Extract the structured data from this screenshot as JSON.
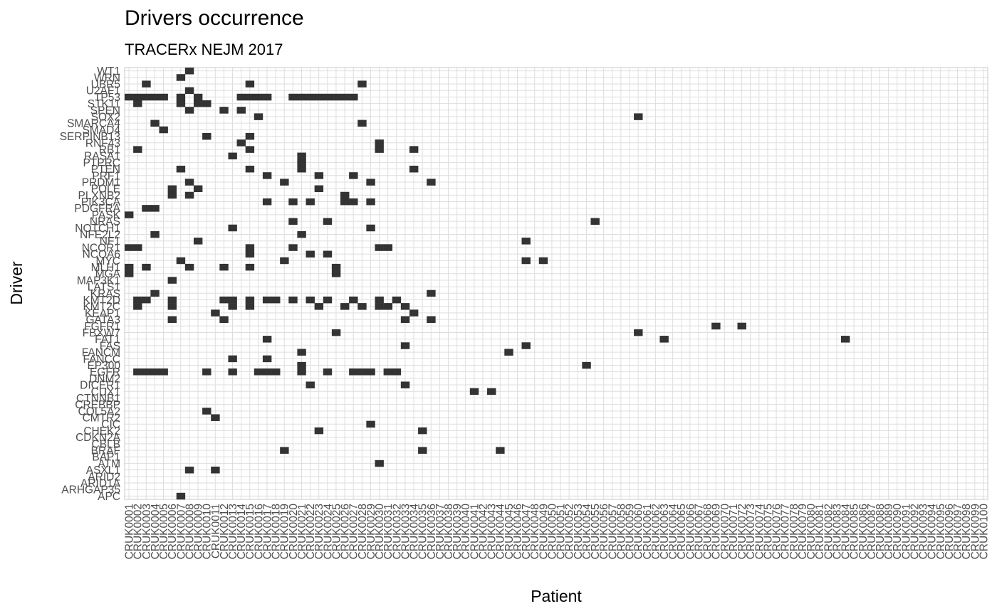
{
  "chart_data": {
    "type": "heatmap",
    "title": "Drivers occurrence",
    "subtitle": "TRACERx NEJM 2017",
    "xlabel": "Patient",
    "ylabel": "Driver",
    "grid": true,
    "legend": "none",
    "colors": {
      "cell": "#333333",
      "grid": "#dedede",
      "panel_border": "#c8c8c8",
      "tick_text": "#4d4d4d"
    },
    "x_categories": [
      "CRUK0001",
      "CRUK0002",
      "CRUK0003",
      "CRUK0004",
      "CRUK0005",
      "CRUK0006",
      "CRUK0007",
      "CRUK0008",
      "CRUK0009",
      "CRUK0010",
      "CRUK0011",
      "CRUK0012",
      "CRUK0013",
      "CRUK0014",
      "CRUK0015",
      "CRUK0016",
      "CRUK0017",
      "CRUK0018",
      "CRUK0019",
      "CRUK0020",
      "CRUK0021",
      "CRUK0022",
      "CRUK0023",
      "CRUK0024",
      "CRUK0025",
      "CRUK0026",
      "CRUK0027",
      "CRUK0028",
      "CRUK0029",
      "CRUK0030",
      "CRUK0031",
      "CRUK0032",
      "CRUK0033",
      "CRUK0034",
      "CRUK0035",
      "CRUK0036",
      "CRUK0037",
      "CRUK0038",
      "CRUK0039",
      "CRUK0040",
      "CRUK0041",
      "CRUK0042",
      "CRUK0043",
      "CRUK0044",
      "CRUK0045",
      "CRUK0046",
      "CRUK0047",
      "CRUK0048",
      "CRUK0049",
      "CRUK0050",
      "CRUK0051",
      "CRUK0052",
      "CRUK0053",
      "CRUK0054",
      "CRUK0055",
      "CRUK0056",
      "CRUK0057",
      "CRUK0058",
      "CRUK0059",
      "CRUK0060",
      "CRUK0061",
      "CRUK0062",
      "CRUK0063",
      "CRUK0064",
      "CRUK0065",
      "CRUK0066",
      "CRUK0067",
      "CRUK0068",
      "CRUK0069",
      "CRUK0070",
      "CRUK0071",
      "CRUK0072",
      "CRUK0073",
      "CRUK0074",
      "CRUK0075",
      "CRUK0076",
      "CRUK0077",
      "CRUK0078",
      "CRUK0079",
      "CRUK0080",
      "CRUK0081",
      "CRUK0082",
      "CRUK0083",
      "CRUK0084",
      "CRUK0085",
      "CRUK0086",
      "CRUK0087",
      "CRUK0088",
      "CRUK0089",
      "CRUK0090",
      "CRUK0091",
      "CRUK0092",
      "CRUK0093",
      "CRUK0094",
      "CRUK0095",
      "CRUK0096",
      "CRUK0097",
      "CRUK0098",
      "CRUK0099",
      "CRUK0100"
    ],
    "y_categories": [
      "APC",
      "ARHGAP35",
      "ARID1A",
      "ARID2",
      "ASXL1",
      "ATM",
      "BAP1",
      "BRAF",
      "CBLB",
      "CDKN2A",
      "CHEK2",
      "CIC",
      "CMTR2",
      "COL5A2",
      "CREBBP",
      "CTNNB1",
      "CUX1",
      "DICER1",
      "DNM2",
      "EGFR",
      "EP300",
      "FANCC",
      "FANCM",
      "FAS",
      "FAT1",
      "FBXW7",
      "FGFR1",
      "GATA3",
      "KEAP1",
      "KMT2C",
      "KMT2D",
      "KRAS",
      "LATS1",
      "MAP3K1",
      "MGA",
      "MLH1",
      "MYC",
      "NCOA6",
      "NCOR1",
      "NF1",
      "NFE2L2",
      "NOTCH1",
      "NRAS",
      "PASK",
      "PDGFRA",
      "PIK3CA",
      "PLXNB2",
      "POLE",
      "PRDM1",
      "PRF1",
      "PTEN",
      "PTPRC",
      "RASA1",
      "RB1",
      "RNF43",
      "SERPINB13",
      "SMAD4",
      "SMARCA4",
      "SOX2",
      "SPEN",
      "STK11",
      "TP53",
      "U2AF1",
      "UBR5",
      "WRN",
      "WT1"
    ],
    "cells": [
      [
        0,
        6
      ],
      [
        4,
        7
      ],
      [
        4,
        10
      ],
      [
        5,
        29
      ],
      [
        7,
        18
      ],
      [
        7,
        34
      ],
      [
        7,
        43
      ],
      [
        10,
        22
      ],
      [
        10,
        34
      ],
      [
        11,
        28
      ],
      [
        12,
        10
      ],
      [
        13,
        9
      ],
      [
        16,
        40
      ],
      [
        16,
        42
      ],
      [
        17,
        21
      ],
      [
        17,
        32
      ],
      [
        19,
        1
      ],
      [
        19,
        2
      ],
      [
        19,
        3
      ],
      [
        19,
        4
      ],
      [
        19,
        9
      ],
      [
        19,
        12
      ],
      [
        19,
        15
      ],
      [
        19,
        16
      ],
      [
        19,
        17
      ],
      [
        19,
        20
      ],
      [
        19,
        23
      ],
      [
        19,
        26
      ],
      [
        19,
        27
      ],
      [
        19,
        28
      ],
      [
        19,
        30
      ],
      [
        19,
        31
      ],
      [
        20,
        20
      ],
      [
        20,
        53
      ],
      [
        21,
        12
      ],
      [
        21,
        16
      ],
      [
        22,
        20
      ],
      [
        22,
        44
      ],
      [
        23,
        46
      ],
      [
        23,
        32
      ],
      [
        24,
        16
      ],
      [
        24,
        62
      ],
      [
        24,
        83
      ],
      [
        25,
        24
      ],
      [
        25,
        59
      ],
      [
        26,
        68
      ],
      [
        26,
        71
      ],
      [
        27,
        5
      ],
      [
        27,
        11
      ],
      [
        27,
        32
      ],
      [
        27,
        35
      ],
      [
        28,
        10
      ],
      [
        28,
        33
      ],
      [
        29,
        1
      ],
      [
        29,
        5
      ],
      [
        29,
        12
      ],
      [
        29,
        14
      ],
      [
        29,
        22
      ],
      [
        29,
        25
      ],
      [
        29,
        27
      ],
      [
        29,
        29
      ],
      [
        29,
        30
      ],
      [
        29,
        32
      ],
      [
        30,
        1
      ],
      [
        30,
        2
      ],
      [
        30,
        5
      ],
      [
        30,
        11
      ],
      [
        30,
        12
      ],
      [
        30,
        14
      ],
      [
        30,
        16
      ],
      [
        30,
        17
      ],
      [
        30,
        19
      ],
      [
        30,
        21
      ],
      [
        30,
        23
      ],
      [
        30,
        26
      ],
      [
        30,
        29
      ],
      [
        30,
        31
      ],
      [
        31,
        3
      ],
      [
        31,
        35
      ],
      [
        33,
        5
      ],
      [
        34,
        0
      ],
      [
        34,
        24
      ],
      [
        35,
        0
      ],
      [
        35,
        2
      ],
      [
        35,
        7
      ],
      [
        35,
        11
      ],
      [
        35,
        14
      ],
      [
        35,
        24
      ],
      [
        36,
        6
      ],
      [
        36,
        18
      ],
      [
        36,
        46
      ],
      [
        36,
        48
      ],
      [
        37,
        14
      ],
      [
        37,
        21
      ],
      [
        37,
        23
      ],
      [
        38,
        0
      ],
      [
        38,
        1
      ],
      [
        38,
        14
      ],
      [
        38,
        19
      ],
      [
        38,
        29
      ],
      [
        38,
        30
      ],
      [
        39,
        8
      ],
      [
        39,
        46
      ],
      [
        40,
        3
      ],
      [
        40,
        20
      ],
      [
        41,
        12
      ],
      [
        41,
        28
      ],
      [
        42,
        19
      ],
      [
        42,
        23
      ],
      [
        42,
        54
      ],
      [
        43,
        0
      ],
      [
        44,
        2
      ],
      [
        44,
        3
      ],
      [
        45,
        16
      ],
      [
        45,
        19
      ],
      [
        45,
        21
      ],
      [
        45,
        25
      ],
      [
        45,
        26
      ],
      [
        45,
        28
      ],
      [
        46,
        5
      ],
      [
        46,
        7
      ],
      [
        46,
        25
      ],
      [
        47,
        5
      ],
      [
        47,
        8
      ],
      [
        47,
        22
      ],
      [
        48,
        7
      ],
      [
        48,
        18
      ],
      [
        48,
        28
      ],
      [
        48,
        35
      ],
      [
        49,
        16
      ],
      [
        49,
        22
      ],
      [
        49,
        26
      ],
      [
        50,
        6
      ],
      [
        50,
        14
      ],
      [
        50,
        20
      ],
      [
        50,
        33
      ],
      [
        51,
        20
      ],
      [
        52,
        12
      ],
      [
        52,
        20
      ],
      [
        53,
        1
      ],
      [
        53,
        14
      ],
      [
        53,
        29
      ],
      [
        53,
        33
      ],
      [
        54,
        13
      ],
      [
        54,
        29
      ],
      [
        55,
        9
      ],
      [
        55,
        14
      ],
      [
        56,
        4
      ],
      [
        57,
        3
      ],
      [
        57,
        27
      ],
      [
        58,
        15
      ],
      [
        58,
        59
      ],
      [
        59,
        7
      ],
      [
        59,
        11
      ],
      [
        59,
        13
      ],
      [
        60,
        1
      ],
      [
        60,
        6
      ],
      [
        60,
        8
      ],
      [
        60,
        9
      ],
      [
        61,
        0
      ],
      [
        61,
        1
      ],
      [
        61,
        2
      ],
      [
        61,
        3
      ],
      [
        61,
        4
      ],
      [
        61,
        6
      ],
      [
        61,
        8
      ],
      [
        61,
        13
      ],
      [
        61,
        14
      ],
      [
        61,
        15
      ],
      [
        61,
        16
      ],
      [
        61,
        19
      ],
      [
        61,
        20
      ],
      [
        61,
        21
      ],
      [
        61,
        22
      ],
      [
        61,
        23
      ],
      [
        61,
        24
      ],
      [
        61,
        25
      ],
      [
        61,
        26
      ],
      [
        62,
        7
      ],
      [
        63,
        2
      ],
      [
        63,
        14
      ],
      [
        63,
        27
      ],
      [
        64,
        6
      ],
      [
        65,
        7
      ]
    ]
  }
}
